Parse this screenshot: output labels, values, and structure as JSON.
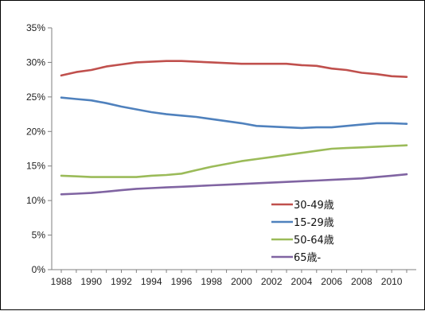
{
  "chart_data": {
    "type": "line",
    "title": "",
    "xlabel": "",
    "ylabel": "",
    "x": [
      1988,
      1989,
      1990,
      1991,
      1992,
      1993,
      1994,
      1995,
      1996,
      1997,
      1998,
      1999,
      2000,
      2001,
      2002,
      2003,
      2004,
      2005,
      2006,
      2007,
      2008,
      2009,
      2010,
      2011
    ],
    "ylim": [
      0,
      35
    ],
    "yticks": [
      "0%",
      "5%",
      "10%",
      "15%",
      "20%",
      "25%",
      "30%",
      "35%"
    ],
    "xticks": [
      "1988",
      "1990",
      "1992",
      "1994",
      "1996",
      "1998",
      "2000",
      "2002",
      "2004",
      "2006",
      "2008",
      "2010"
    ],
    "grid": false,
    "legend_position": "bottom-right",
    "series": [
      {
        "name": "30-49歳",
        "color": "#c0504d",
        "values": [
          28.1,
          28.6,
          28.9,
          29.4,
          29.7,
          30.0,
          30.1,
          30.2,
          30.2,
          30.1,
          30.0,
          29.9,
          29.8,
          29.8,
          29.8,
          29.8,
          29.6,
          29.5,
          29.1,
          28.9,
          28.5,
          28.3,
          28.0,
          27.9
        ]
      },
      {
        "name": "15-29歳",
        "color": "#4f81bd",
        "values": [
          24.9,
          24.7,
          24.5,
          24.1,
          23.6,
          23.2,
          22.8,
          22.5,
          22.3,
          22.1,
          21.8,
          21.5,
          21.2,
          20.8,
          20.7,
          20.6,
          20.5,
          20.6,
          20.6,
          20.8,
          21.0,
          21.2,
          21.2,
          21.1
        ]
      },
      {
        "name": "50-64歳",
        "color": "#9bbb59",
        "values": [
          13.6,
          13.5,
          13.4,
          13.4,
          13.4,
          13.4,
          13.6,
          13.7,
          13.9,
          14.4,
          14.9,
          15.3,
          15.7,
          16.0,
          16.3,
          16.6,
          16.9,
          17.2,
          17.5,
          17.6,
          17.7,
          17.8,
          17.9,
          18.0
        ]
      },
      {
        "name": "65歳-",
        "color": "#8064a2",
        "values": [
          10.9,
          11.0,
          11.1,
          11.3,
          11.5,
          11.7,
          11.8,
          11.9,
          12.0,
          12.1,
          12.2,
          12.3,
          12.4,
          12.5,
          12.6,
          12.7,
          12.8,
          12.9,
          13.0,
          13.1,
          13.2,
          13.4,
          13.6,
          13.8
        ]
      }
    ]
  }
}
